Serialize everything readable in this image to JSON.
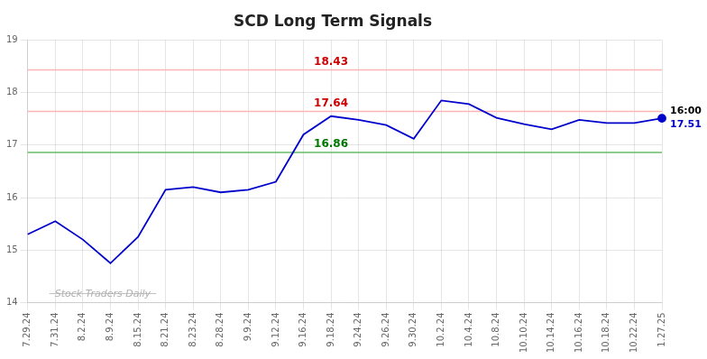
{
  "chart_data": {
    "type": "line",
    "title": "SCD Long Term Signals",
    "categories": [
      "7.29.24",
      "7.31.24",
      "8.2.24",
      "8.9.24",
      "8.15.24",
      "8.21.24",
      "8.23.24",
      "8.28.24",
      "9.9.24",
      "9.12.24",
      "9.16.24",
      "9.18.24",
      "9.24.24",
      "9.26.24",
      "9.30.24",
      "10.2.24",
      "10.4.24",
      "10.8.24",
      "10.10.24",
      "10.14.24",
      "10.16.24",
      "10.18.24",
      "10.22.24",
      "1.27.25"
    ],
    "values": [
      15.3,
      15.55,
      15.2,
      14.75,
      15.25,
      16.15,
      16.2,
      16.1,
      16.15,
      16.3,
      17.2,
      17.55,
      17.48,
      17.38,
      17.12,
      17.85,
      17.78,
      17.52,
      17.4,
      17.3,
      17.48,
      17.42,
      17.42,
      17.51
    ],
    "value_labels": [
      null,
      null,
      null,
      null,
      null,
      null,
      null,
      null,
      null,
      null,
      null,
      null,
      null,
      null,
      null,
      null,
      null,
      null,
      null,
      null,
      null,
      null,
      null,
      "17.51"
    ],
    "color": "#0000cc",
    "marker": "circle",
    "hlines": [
      {
        "value": 18.43,
        "color": "#ffb3b3",
        "label": "18.43",
        "label_color": "#cc0000"
      },
      {
        "value": 17.64,
        "color": "#ffb3b3",
        "label": "17.64",
        "label_color": "#cc0000"
      },
      {
        "value": 16.86,
        "color": "#66bb66",
        "label": "16.86",
        "label_color": "#007700"
      }
    ],
    "annotations": [
      {
        "text": "16:00",
        "color": "#000000"
      },
      {
        "text": "Stock Traders Daily",
        "color": "#b0b0b0"
      }
    ],
    "ylim": [
      14,
      19
    ],
    "yticks": [
      14,
      15,
      16,
      17,
      18,
      19
    ],
    "grid": true
  }
}
